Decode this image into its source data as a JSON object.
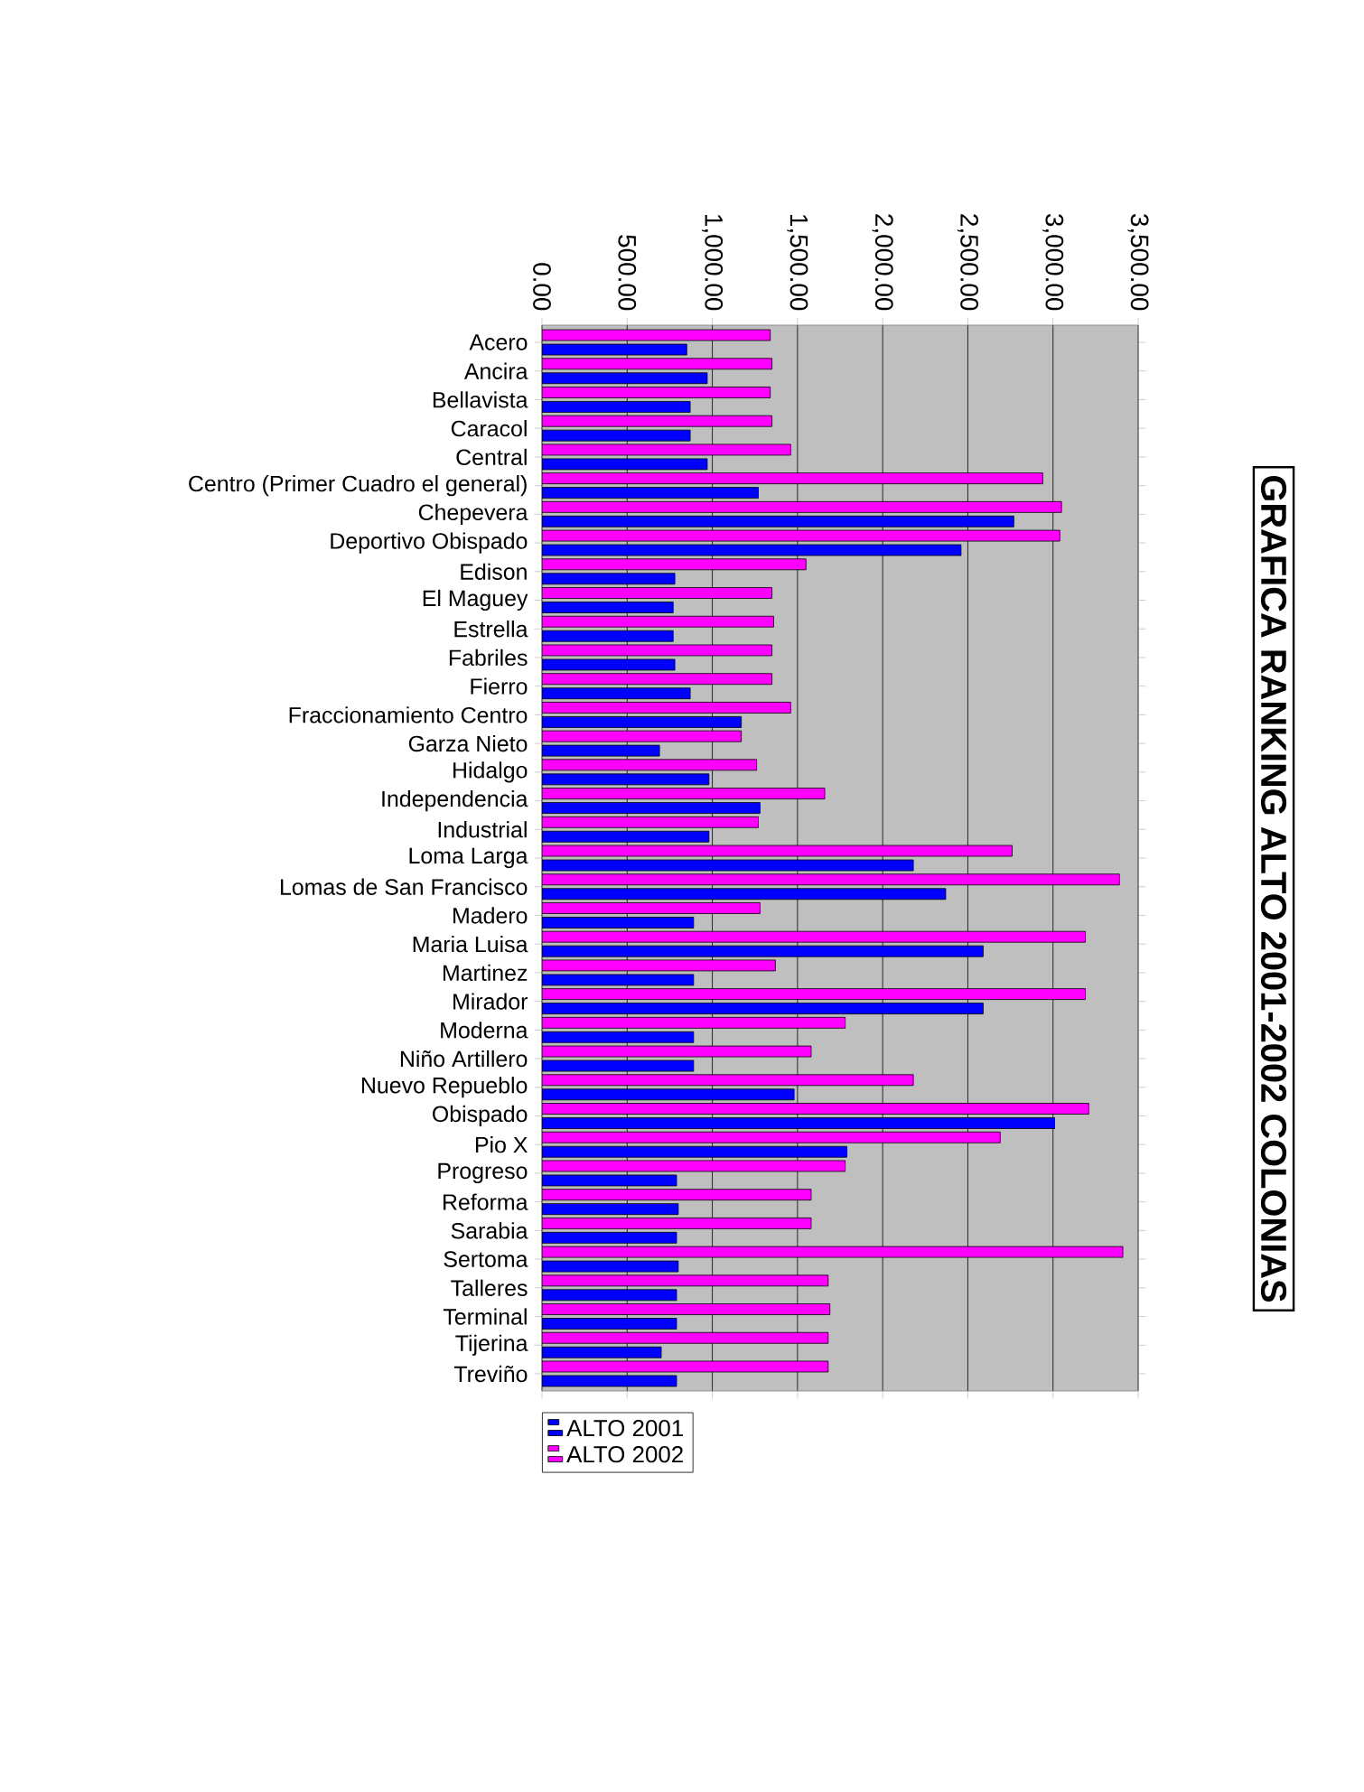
{
  "chart_data": {
    "type": "bar",
    "title": "GRAFICA RANKING ALTO 2001-2002 COLONIAS",
    "orientation": "horizontal",
    "categories": [
      "Acero",
      "Ancira",
      "Bellavista",
      "Caracol",
      "Central",
      "Centro (Primer Cuadro el general)",
      "Chepevera",
      "Deportivo Obispado",
      "Edison",
      "El Maguey",
      "Estrella",
      "Fabriles",
      "Fierro",
      "Fraccionamiento Centro",
      "Garza Nieto",
      "Hidalgo",
      "Independencia",
      "Industrial",
      "Loma Larga",
      "Lomas de San Francisco",
      "Madero",
      "Maria Luisa",
      "Martinez",
      "Mirador",
      "Moderna",
      "Niño Artillero",
      "Nuevo Repueblo",
      "Obispado",
      "Pio X",
      "Progreso",
      "Reforma",
      "Sarabia",
      "Sertoma",
      "Talleres",
      "Terminal",
      "Tijerina",
      "Treviño"
    ],
    "series": [
      {
        "name": "ALTO 2001",
        "color": "#0000ff",
        "values": [
          850,
          970,
          870,
          870,
          970,
          1270,
          2770,
          2460,
          780,
          770,
          770,
          780,
          870,
          1170,
          690,
          980,
          1280,
          980,
          2180,
          2370,
          890,
          2590,
          890,
          2590,
          890,
          890,
          1480,
          3010,
          1790,
          790,
          800,
          790,
          800,
          790,
          790,
          700,
          790
        ]
      },
      {
        "name": "ALTO 2002",
        "color": "#ff00ff",
        "values": [
          1340,
          1350,
          1340,
          1350,
          1460,
          2940,
          3050,
          3040,
          1550,
          1350,
          1360,
          1350,
          1350,
          1460,
          1170,
          1260,
          1660,
          1270,
          2760,
          3390,
          1280,
          3190,
          1370,
          3190,
          1780,
          1580,
          2180,
          3210,
          2690,
          1780,
          1580,
          1580,
          3410,
          1680,
          1690,
          1680,
          1680
        ]
      }
    ],
    "xlim": [
      0,
      3500
    ],
    "xticks": [
      {
        "value": 0,
        "label": "0.00"
      },
      {
        "value": 500,
        "label": "500.00"
      },
      {
        "value": 1000,
        "label": "1,000.00"
      },
      {
        "value": 1500,
        "label": "1,500.00"
      },
      {
        "value": 2000,
        "label": "2,000.00"
      },
      {
        "value": 2500,
        "label": "2,500.00"
      },
      {
        "value": 3000,
        "label": "3,000.00"
      },
      {
        "value": 3500,
        "label": "3,500.00"
      }
    ],
    "grid": "x",
    "legend": "bottom"
  }
}
